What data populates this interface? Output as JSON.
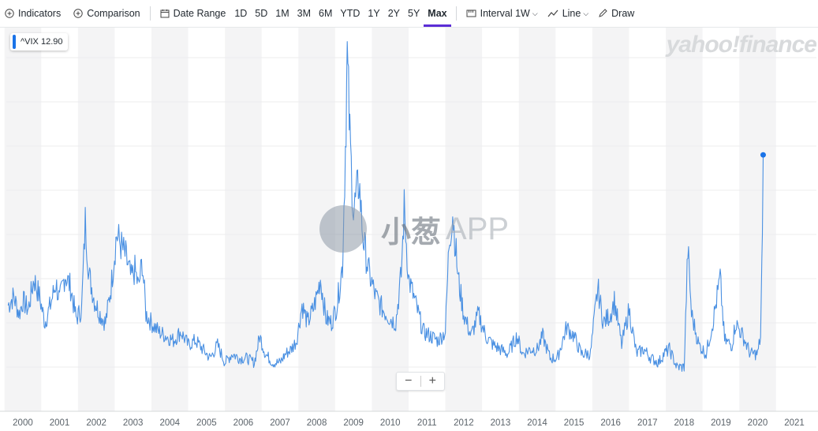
{
  "toolbar": {
    "indicators": "Indicators",
    "comparison": "Comparison",
    "date_range": "Date Range",
    "ranges": [
      "1D",
      "5D",
      "1M",
      "3M",
      "6M",
      "YTD",
      "1Y",
      "2Y",
      "5Y",
      "Max"
    ],
    "active_range": "Max",
    "interval_label": "Interval",
    "interval_value": "1W",
    "chart_type": "Line",
    "draw": "Draw"
  },
  "legend": {
    "symbol": "^VIX",
    "value": "12.90",
    "color": "#1a73e8"
  },
  "logo": "yahoo!finance",
  "watermark": {
    "cn": "小葱",
    "app": "APP"
  },
  "zoom": {
    "minus": "−",
    "plus": "+"
  },
  "chart_data": {
    "type": "line",
    "series": [
      {
        "name": "^VIX",
        "color": "#4a90e2"
      }
    ],
    "x_ticks": [
      "2000",
      "2001",
      "2002",
      "2003",
      "2004",
      "2005",
      "2006",
      "2007",
      "2008",
      "2009",
      "2010",
      "2011",
      "2012",
      "2013",
      "2014",
      "2015",
      "2016",
      "2017",
      "2018",
      "2019",
      "2020",
      "2021"
    ],
    "x_range": [
      1999.55,
      2021.6
    ],
    "y_range": [
      0,
      85
    ],
    "grid": "horizontal lines, alternating shaded year columns",
    "points": [
      [
        1999.6,
        24
      ],
      [
        1999.75,
        26
      ],
      [
        1999.9,
        22
      ],
      [
        2000.0,
        25
      ],
      [
        2000.15,
        23
      ],
      [
        2000.3,
        30
      ],
      [
        2000.45,
        26
      ],
      [
        2000.6,
        20
      ],
      [
        2000.75,
        24
      ],
      [
        2000.9,
        29
      ],
      [
        2001.0,
        25
      ],
      [
        2001.15,
        31
      ],
      [
        2001.3,
        28
      ],
      [
        2001.45,
        21
      ],
      [
        2001.6,
        23
      ],
      [
        2001.7,
        43
      ],
      [
        2001.8,
        31
      ],
      [
        2001.95,
        25
      ],
      [
        2002.1,
        22
      ],
      [
        2002.25,
        20
      ],
      [
        2002.4,
        28
      ],
      [
        2002.55,
        40
      ],
      [
        2002.65,
        38
      ],
      [
        2002.8,
        35
      ],
      [
        2002.95,
        30
      ],
      [
        2003.05,
        32
      ],
      [
        2003.15,
        28
      ],
      [
        2003.25,
        34
      ],
      [
        2003.35,
        22
      ],
      [
        2003.5,
        20
      ],
      [
        2003.7,
        18
      ],
      [
        2003.9,
        17
      ],
      [
        2004.1,
        16
      ],
      [
        2004.3,
        18
      ],
      [
        2004.5,
        15
      ],
      [
        2004.7,
        16
      ],
      [
        2004.9,
        14
      ],
      [
        2005.1,
        12
      ],
      [
        2005.3,
        15
      ],
      [
        2005.5,
        11
      ],
      [
        2005.7,
        13
      ],
      [
        2005.9,
        12
      ],
      [
        2006.1,
        12
      ],
      [
        2006.3,
        11
      ],
      [
        2006.45,
        17
      ],
      [
        2006.6,
        13
      ],
      [
        2006.8,
        11
      ],
      [
        2007.0,
        11
      ],
      [
        2007.15,
        13
      ],
      [
        2007.3,
        14
      ],
      [
        2007.45,
        16
      ],
      [
        2007.6,
        24
      ],
      [
        2007.75,
        20
      ],
      [
        2007.9,
        23
      ],
      [
        2008.0,
        26
      ],
      [
        2008.1,
        30
      ],
      [
        2008.25,
        21
      ],
      [
        2008.4,
        20
      ],
      [
        2008.55,
        24
      ],
      [
        2008.7,
        33
      ],
      [
        2008.78,
        60
      ],
      [
        2008.83,
        80
      ],
      [
        2008.9,
        62
      ],
      [
        2009.0,
        45
      ],
      [
        2009.15,
        52
      ],
      [
        2009.25,
        40
      ],
      [
        2009.4,
        32
      ],
      [
        2009.6,
        26
      ],
      [
        2009.8,
        23
      ],
      [
        2010.0,
        21
      ],
      [
        2010.15,
        20
      ],
      [
        2010.3,
        31
      ],
      [
        2010.38,
        46
      ],
      [
        2010.5,
        30
      ],
      [
        2010.7,
        24
      ],
      [
        2010.9,
        18
      ],
      [
        2011.1,
        17
      ],
      [
        2011.3,
        16
      ],
      [
        2011.5,
        18
      ],
      [
        2011.6,
        38
      ],
      [
        2011.7,
        45
      ],
      [
        2011.85,
        30
      ],
      [
        2012.0,
        22
      ],
      [
        2012.2,
        17
      ],
      [
        2012.4,
        22
      ],
      [
        2012.6,
        17
      ],
      [
        2012.8,
        15
      ],
      [
        2013.0,
        14
      ],
      [
        2013.2,
        13
      ],
      [
        2013.45,
        17
      ],
      [
        2013.6,
        13
      ],
      [
        2013.8,
        14
      ],
      [
        2014.0,
        14
      ],
      [
        2014.15,
        17
      ],
      [
        2014.35,
        12
      ],
      [
        2014.55,
        12
      ],
      [
        2014.8,
        19
      ],
      [
        2015.0,
        17
      ],
      [
        2015.2,
        13
      ],
      [
        2015.45,
        13
      ],
      [
        2015.65,
        28
      ],
      [
        2015.8,
        20
      ],
      [
        2016.0,
        22
      ],
      [
        2016.1,
        25
      ],
      [
        2016.3,
        15
      ],
      [
        2016.5,
        23
      ],
      [
        2016.7,
        13
      ],
      [
        2016.9,
        14
      ],
      [
        2017.1,
        12
      ],
      [
        2017.3,
        11
      ],
      [
        2017.45,
        13
      ],
      [
        2017.6,
        14
      ],
      [
        2017.8,
        10
      ],
      [
        2018.0,
        10
      ],
      [
        2018.1,
        37
      ],
      [
        2018.2,
        22
      ],
      [
        2018.4,
        15
      ],
      [
        2018.6,
        13
      ],
      [
        2018.8,
        21
      ],
      [
        2018.98,
        30
      ],
      [
        2019.1,
        16
      ],
      [
        2019.3,
        15
      ],
      [
        2019.4,
        20
      ],
      [
        2019.6,
        17
      ],
      [
        2019.8,
        13
      ],
      [
        2020.0,
        13
      ],
      [
        2020.08,
        17
      ],
      [
        2020.13,
        40
      ],
      [
        2020.15,
        58
      ]
    ],
    "last_value_dot": [
      2020.15,
      58
    ]
  }
}
